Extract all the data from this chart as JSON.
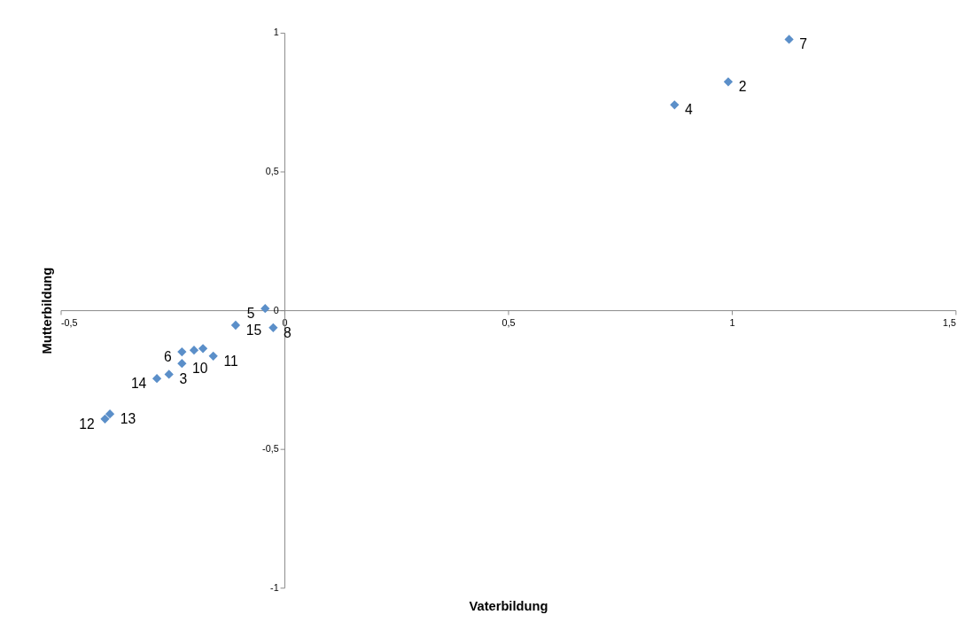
{
  "chart_data": {
    "type": "scatter",
    "xlabel": "Vaterbildung",
    "ylabel": "Mutterbildung",
    "x": [
      -0.043,
      -0.025,
      -0.109,
      -0.229,
      -0.202,
      -0.182,
      -0.159,
      -0.229,
      -0.258,
      -0.285,
      -0.39,
      -0.401,
      1.128,
      0.992,
      0.872
    ],
    "series": [
      {
        "color": "#5b8fc9",
        "values": [
          0.006,
          -0.063,
          -0.054,
          -0.15,
          -0.144,
          -0.138,
          -0.165,
          -0.192,
          -0.231,
          -0.246,
          -0.374,
          -0.392,
          0.976,
          0.823,
          0.74
        ]
      }
    ],
    "annotations": [
      {
        "text": "5",
        "x": -0.043,
        "y": 0.006
      },
      {
        "text": "8",
        "x": -0.025,
        "y": -0.063
      },
      {
        "text": "15",
        "x": -0.109,
        "y": -0.054
      },
      {
        "text": "6",
        "x": -0.229,
        "y": -0.15
      },
      {
        "text": "11",
        "x": -0.159,
        "y": -0.165
      },
      {
        "text": "10",
        "x": -0.229,
        "y": -0.192
      },
      {
        "text": "3",
        "x": -0.258,
        "y": -0.231
      },
      {
        "text": "14",
        "x": -0.285,
        "y": -0.246
      },
      {
        "text": "13",
        "x": -0.39,
        "y": -0.374
      },
      {
        "text": "12",
        "x": -0.401,
        "y": -0.392
      },
      {
        "text": "7",
        "x": 1.128,
        "y": 0.976
      },
      {
        "text": "2",
        "x": 0.992,
        "y": 0.823
      },
      {
        "text": "4",
        "x": 0.872,
        "y": 0.74
      }
    ],
    "xlim": [
      -0.5,
      1.5
    ],
    "xticks": [
      {
        "value": -0.5,
        "label": "-0,5"
      },
      0,
      {
        "value": 0.5,
        "label": "0,5"
      },
      1,
      {
        "value": 1.5,
        "label": "1,5"
      }
    ],
    "ylim": [
      -1,
      1
    ],
    "yticks": [
      -1,
      {
        "value": -0.5,
        "label": "-0,5"
      },
      0,
      {
        "value": 0.5,
        "label": "0,5"
      },
      1
    ],
    "grid": false,
    "marker": "diamond",
    "legend": false
  }
}
